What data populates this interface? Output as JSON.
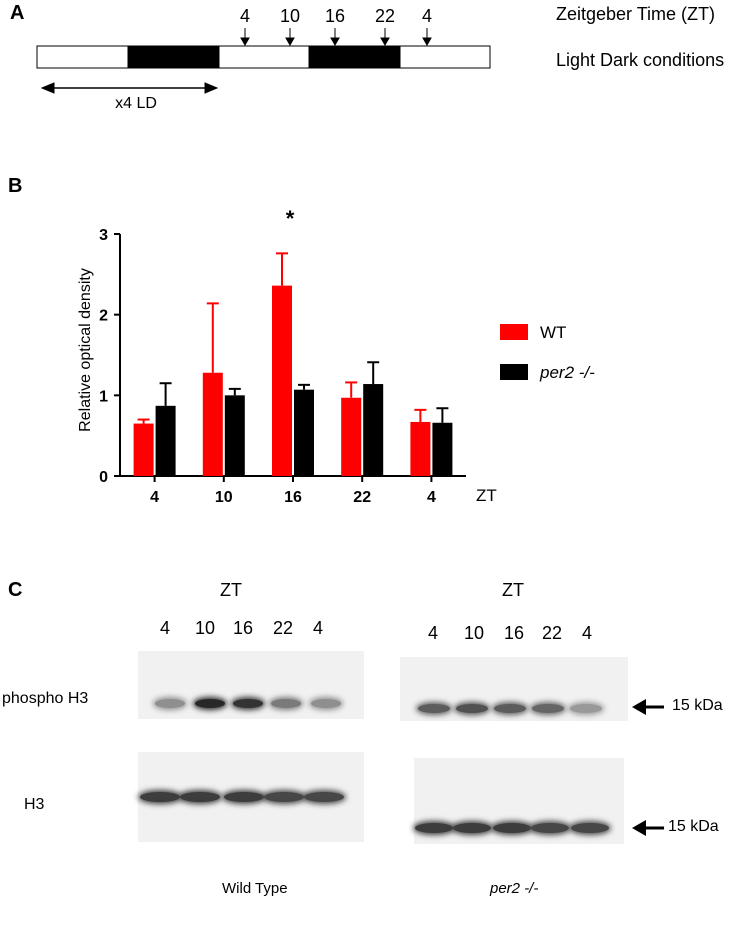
{
  "panel_a": {
    "letter": "A",
    "zt_label": "Zeitgeber Time (ZT)",
    "ld_label": "Light Dark conditions",
    "arrow_times": [
      "4",
      "10",
      "16",
      "22",
      "4"
    ],
    "entrainment_label": "x4 LD",
    "segments": [
      "light",
      "dark",
      "light",
      "dark",
      "light"
    ]
  },
  "chart_data": {
    "type": "bar",
    "panel_letter": "B",
    "categories": [
      "4",
      "10",
      "16",
      "22",
      "4"
    ],
    "series": [
      {
        "name": "WT",
        "color": "#ff0000",
        "values": [
          0.65,
          1.28,
          2.36,
          0.97,
          0.67
        ],
        "errors": [
          0.05,
          0.86,
          0.4,
          0.19,
          0.15
        ]
      },
      {
        "name": "per2 -/-",
        "color": "#000000",
        "values": [
          0.87,
          1.0,
          1.07,
          1.14,
          0.66
        ],
        "errors": [
          0.28,
          0.08,
          0.06,
          0.27,
          0.18
        ]
      }
    ],
    "ylabel": "Relative optical density",
    "xunit": "ZT",
    "ylim": [
      0,
      3
    ],
    "yticks": [
      "0",
      "1",
      "2",
      "3"
    ],
    "annotation": "*",
    "annotation_category_index": 2,
    "legend_placement": "right",
    "grid": false
  },
  "panel_c": {
    "letter": "C",
    "wild_type": {
      "zt_header": "ZT",
      "lanes": [
        "4",
        "10",
        "16",
        "22",
        "4"
      ],
      "caption": "Wild Type",
      "phospho_intensity": [
        0.45,
        0.95,
        0.9,
        0.55,
        0.45
      ],
      "h3_intensity": [
        0.85,
        0.85,
        0.85,
        0.8,
        0.8
      ]
    },
    "per2": {
      "zt_header": "ZT",
      "lanes": [
        "4",
        "10",
        "16",
        "22",
        "4"
      ],
      "caption": "per2 -/-",
      "phospho_intensity": [
        0.7,
        0.75,
        0.7,
        0.65,
        0.4
      ],
      "h3_intensity": [
        0.85,
        0.85,
        0.85,
        0.8,
        0.8
      ]
    },
    "row_labels": {
      "phospho": "phospho H3",
      "h3": "H3"
    },
    "marker_label": "15 kDa"
  }
}
